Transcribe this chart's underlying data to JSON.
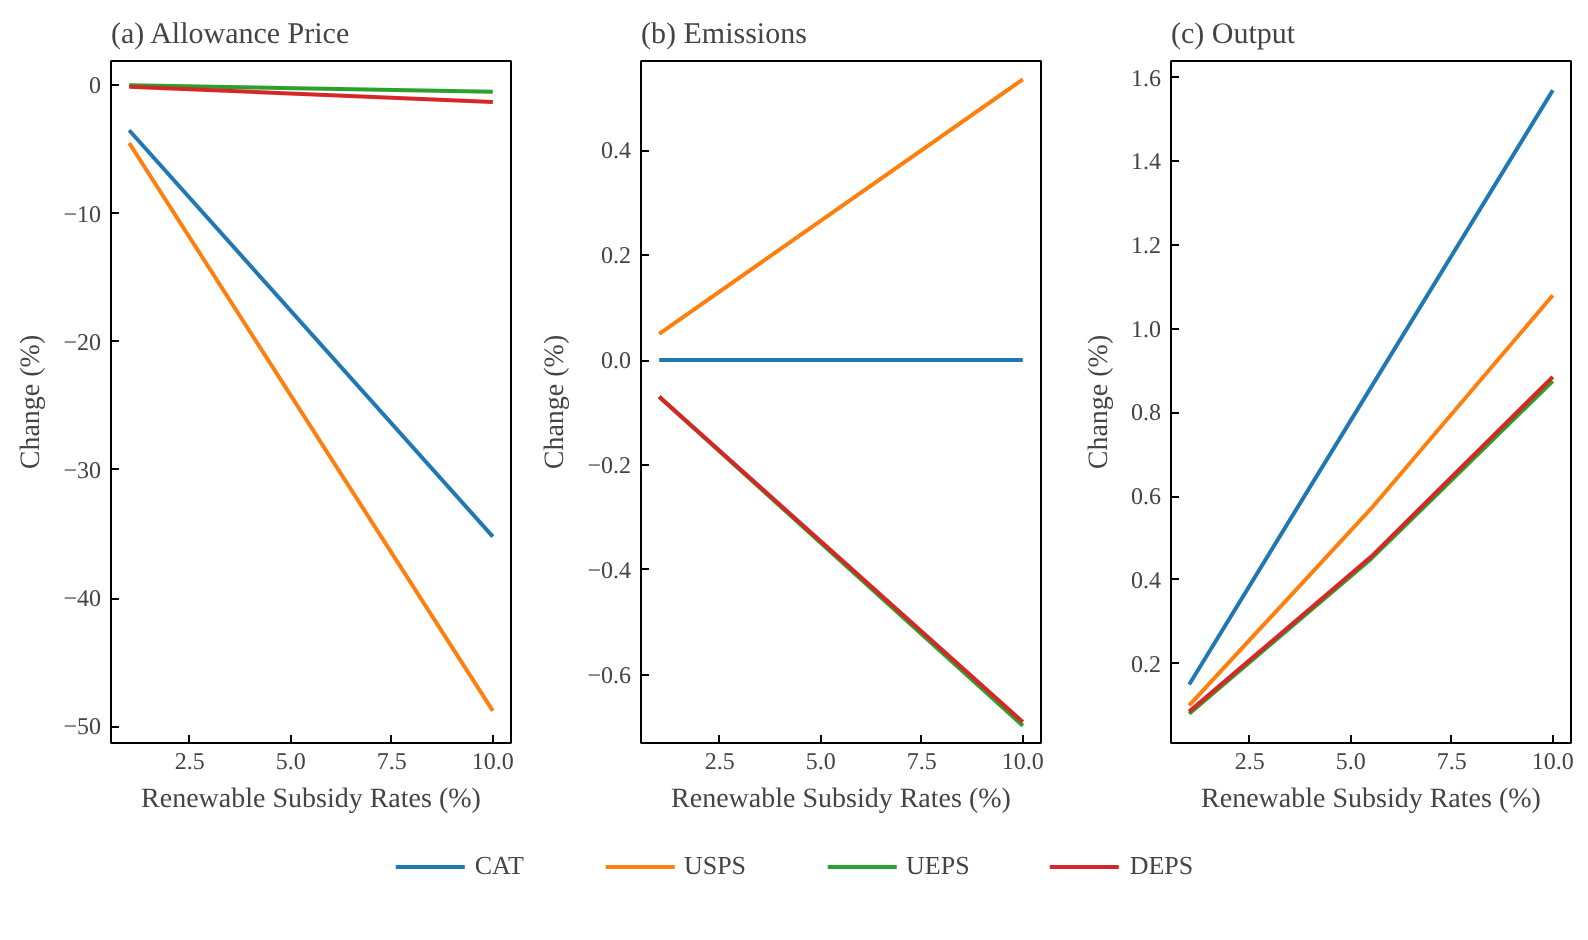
{
  "chart_data": [
    {
      "type": "line",
      "title": "(a) Allowance Price",
      "xlabel": "Renewable Subsidy Rates (%)",
      "ylabel": "Change (%)",
      "legend": "bottom",
      "grid": false,
      "xlim": [
        0.55,
        10.45
      ],
      "ylim": [
        -51.3,
        1.9
      ],
      "xticks": [
        {
          "value": 2.5,
          "label": "2.5"
        },
        {
          "value": 5,
          "label": "5.0"
        },
        {
          "value": 7.5,
          "label": "7.5"
        },
        {
          "value": 10,
          "label": "10.0"
        }
      ],
      "yticks": [
        {
          "value": -50,
          "label": "−50"
        },
        {
          "value": -40,
          "label": "−40"
        },
        {
          "value": -30,
          "label": "−30"
        },
        {
          "value": -20,
          "label": "−20"
        },
        {
          "value": -10,
          "label": "−10"
        },
        0
      ],
      "x": [
        1,
        10
      ],
      "series": [
        {
          "name": "CAT",
          "color": "#1f77b4",
          "values": [
            -3.5,
            -35.2
          ]
        },
        {
          "name": "USPS",
          "color": "#ff7f0e",
          "values": [
            -4.5,
            -48.8
          ]
        },
        {
          "name": "UEPS",
          "color": "#2ca02c",
          "values": [
            0,
            -0.5
          ]
        },
        {
          "name": "DEPS",
          "color": "#d62728",
          "values": [
            -0.1,
            -1.3
          ]
        }
      ]
    },
    {
      "type": "line",
      "title": "(b) Emissions",
      "xlabel": "Renewable Subsidy Rates (%)",
      "ylabel": "Change (%)",
      "grid": false,
      "xlim": [
        0.55,
        10.45
      ],
      "ylim": [
        -0.73,
        0.57
      ],
      "xticks": [
        {
          "value": 2.5,
          "label": "2.5"
        },
        {
          "value": 5,
          "label": "5.0"
        },
        {
          "value": 7.5,
          "label": "7.5"
        },
        {
          "value": 10,
          "label": "10.0"
        }
      ],
      "yticks": [
        {
          "value": -0.6,
          "label": "−0.6"
        },
        {
          "value": -0.4,
          "label": "−0.4"
        },
        {
          "value": -0.2,
          "label": "−0.2"
        },
        {
          "value": 0,
          "label": "0.0"
        },
        {
          "value": 0.2,
          "label": "0.2"
        },
        {
          "value": 0.4,
          "label": "0.4"
        }
      ],
      "x": [
        1,
        10
      ],
      "series": [
        {
          "color": "#1f77b4",
          "values": [
            0,
            0
          ]
        },
        {
          "color": "#ff7f0e",
          "values": [
            0.05,
            0.535
          ]
        },
        {
          "color": "#2ca02c",
          "values": [
            -0.07,
            -0.697
          ]
        },
        {
          "color": "#d62728",
          "values": [
            -0.07,
            -0.69
          ]
        }
      ]
    },
    {
      "type": "line",
      "title": "(c) Output",
      "xlabel": "Renewable Subsidy Rates (%)",
      "ylabel": "Change (%)",
      "grid": false,
      "xlim": [
        0.55,
        10.45
      ],
      "ylim": [
        0.01,
        1.64
      ],
      "xticks": [
        {
          "value": 2.5,
          "label": "2.5"
        },
        {
          "value": 5,
          "label": "5.0"
        },
        {
          "value": 7.5,
          "label": "7.5"
        },
        {
          "value": 10,
          "label": "10.0"
        }
      ],
      "yticks": [
        0.2,
        0.4,
        0.6,
        0.8,
        {
          "value": 1,
          "label": "1.0"
        },
        1.2,
        1.4,
        1.6
      ],
      "x": [
        1,
        5.5,
        10
      ],
      "series": [
        {
          "color": "#1f77b4",
          "values": [
            0.15,
            0.86,
            1.57
          ]
        },
        {
          "color": "#ff7f0e",
          "values": [
            0.1,
            0.57,
            1.08
          ]
        },
        {
          "color": "#2ca02c",
          "values": [
            0.08,
            0.45,
            0.875
          ]
        },
        {
          "color": "#d62728",
          "values": [
            0.085,
            0.455,
            0.885
          ]
        }
      ]
    }
  ]
}
